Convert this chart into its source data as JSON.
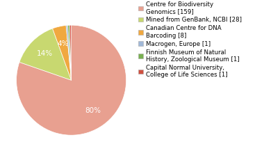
{
  "labels": [
    "Centre for Biodiversity\nGenomics [159]",
    "Mined from GenBank, NCBI [28]",
    "Canadian Centre for DNA\nBarcoding [8]",
    "Macrogen, Europe [1]",
    "Finnish Museum of Natural\nHistory, Zoological Museum [1]",
    "Capital Normal University,\nCollege of Life Sciences [1]"
  ],
  "values": [
    159,
    28,
    8,
    1,
    1,
    1
  ],
  "colors": [
    "#e8a090",
    "#c8d870",
    "#f0a840",
    "#a0b8d8",
    "#78b050",
    "#d05040"
  ],
  "figsize": [
    3.8,
    2.4
  ],
  "dpi": 100,
  "legend_fontsize": 6.2,
  "pct_fontsize": 7.5,
  "bg_color": "#ffffff"
}
